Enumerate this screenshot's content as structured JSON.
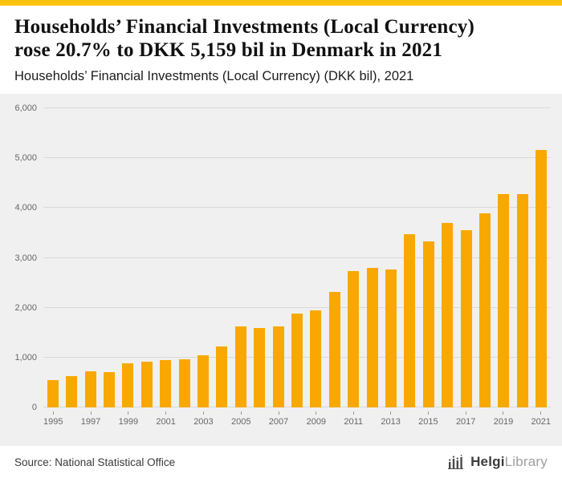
{
  "accent_color": "#FFC20E",
  "header": {
    "title_line1": "Households’ Financial Investments (Local Currency)",
    "title_line2": "rose 20.7% to DKK 5,159 bil in Denmark in 2021",
    "subtitle": "Households’ Financial Investments (Local Currency) (DKK bil), 2021"
  },
  "chart_data": {
    "type": "bar",
    "title": "Households’ Financial Investments (Local Currency) (DKK bil), 2021",
    "categories": [
      1995,
      1996,
      1997,
      1998,
      1999,
      2000,
      2001,
      2002,
      2003,
      2004,
      2005,
      2006,
      2007,
      2008,
      2009,
      2010,
      2011,
      2012,
      2013,
      2014,
      2015,
      2016,
      2017,
      2018,
      2019,
      2020,
      2021
    ],
    "values": [
      550,
      620,
      730,
      710,
      890,
      910,
      950,
      970,
      1050,
      1230,
      1630,
      1590,
      1630,
      1880,
      1950,
      2310,
      2740,
      2800,
      2770,
      3480,
      3330,
      3700,
      3550,
      3890,
      4280,
      4274,
      5159
    ],
    "xlabel": "",
    "ylabel": "",
    "ylim": [
      0,
      6000
    ],
    "ytick_interval": 1000,
    "ytick_labels": [
      "0",
      "1,000",
      "2,000",
      "3,000",
      "4,000",
      "5,000",
      "6,000"
    ],
    "xtick_every": 2,
    "grid": true,
    "legend": "none",
    "bar_color": "#F8A800",
    "background": "#F0F0F0"
  },
  "footer": {
    "source": "Source: National Statistical Office",
    "logo_bold": "Helgi",
    "logo_light": "Library",
    "logo_icon": "bar-columns-icon"
  }
}
